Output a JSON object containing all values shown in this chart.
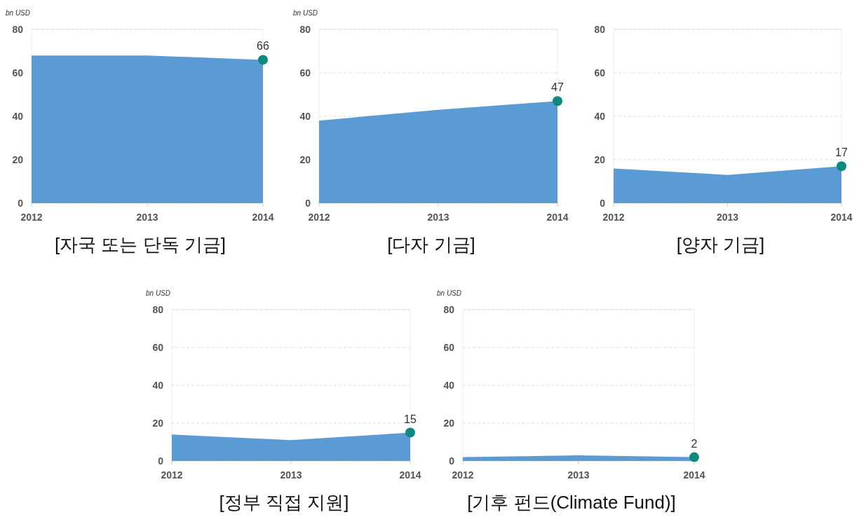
{
  "chart_data": [
    {
      "type": "area",
      "title": "[자국 또는 단독 기금]",
      "ylabel": "bn USD",
      "categories": [
        "2012",
        "2013",
        "2014"
      ],
      "ylim": [
        0,
        80
      ],
      "yticks": [
        0,
        20,
        40,
        60,
        80
      ],
      "grid": "y",
      "series": [
        {
          "type": "area",
          "color": "#5b9bd5",
          "values": [
            68,
            68,
            66
          ]
        },
        {
          "type": "scatter",
          "color": "#0e8a80",
          "values": [
            null,
            null,
            66
          ],
          "value_labels": [
            null,
            null,
            "66"
          ],
          "marker": "circle"
        }
      ]
    },
    {
      "type": "area",
      "title": "[다자 기금]",
      "ylabel": "bn USD",
      "categories": [
        "2012",
        "2013",
        "2014"
      ],
      "ylim": [
        0,
        80
      ],
      "yticks": [
        0,
        20,
        40,
        60,
        80
      ],
      "grid": "y",
      "series": [
        {
          "type": "area",
          "color": "#5b9bd5",
          "values": [
            38,
            43,
            47
          ]
        },
        {
          "type": "scatter",
          "color": "#0e8a80",
          "values": [
            null,
            null,
            47
          ],
          "value_labels": [
            null,
            null,
            "47"
          ],
          "marker": "circle"
        }
      ]
    },
    {
      "type": "area",
      "title": "[양자 기금]",
      "categories": [
        "2012",
        "2013",
        "2014"
      ],
      "ylim": [
        0,
        80
      ],
      "yticks": [
        0,
        20,
        40,
        60,
        80
      ],
      "grid": "y",
      "series": [
        {
          "type": "area",
          "color": "#5b9bd5",
          "values": [
            16,
            13,
            17
          ]
        },
        {
          "type": "scatter",
          "color": "#0e8a80",
          "values": [
            null,
            null,
            17
          ],
          "value_labels": [
            null,
            null,
            "17"
          ],
          "marker": "circle"
        }
      ]
    },
    {
      "type": "area",
      "title": "[정부 직접 지원]",
      "ylabel": "bn USD",
      "categories": [
        "2012",
        "2013",
        "2014"
      ],
      "ylim": [
        0,
        80
      ],
      "yticks": [
        0,
        20,
        40,
        60,
        80
      ],
      "grid": "y",
      "series": [
        {
          "type": "area",
          "color": "#5b9bd5",
          "values": [
            14,
            11,
            15
          ]
        },
        {
          "type": "scatter",
          "color": "#0e8a80",
          "values": [
            null,
            null,
            15
          ],
          "value_labels": [
            null,
            null,
            "15"
          ],
          "marker": "circle"
        }
      ]
    },
    {
      "type": "area",
      "title": "[기후 펀드(Climate Fund)]",
      "ylabel": "bn USD",
      "categories": [
        "2012",
        "2013",
        "2014"
      ],
      "ylim": [
        0,
        80
      ],
      "yticks": [
        0,
        20,
        40,
        60,
        80
      ],
      "grid": "y",
      "series": [
        {
          "type": "area",
          "color": "#5b9bd5",
          "values": [
            2,
            3,
            2
          ]
        },
        {
          "type": "scatter",
          "color": "#0e8a80",
          "values": [
            null,
            null,
            2
          ],
          "value_labels": [
            null,
            null,
            "2"
          ],
          "marker": "circle"
        }
      ]
    }
  ]
}
